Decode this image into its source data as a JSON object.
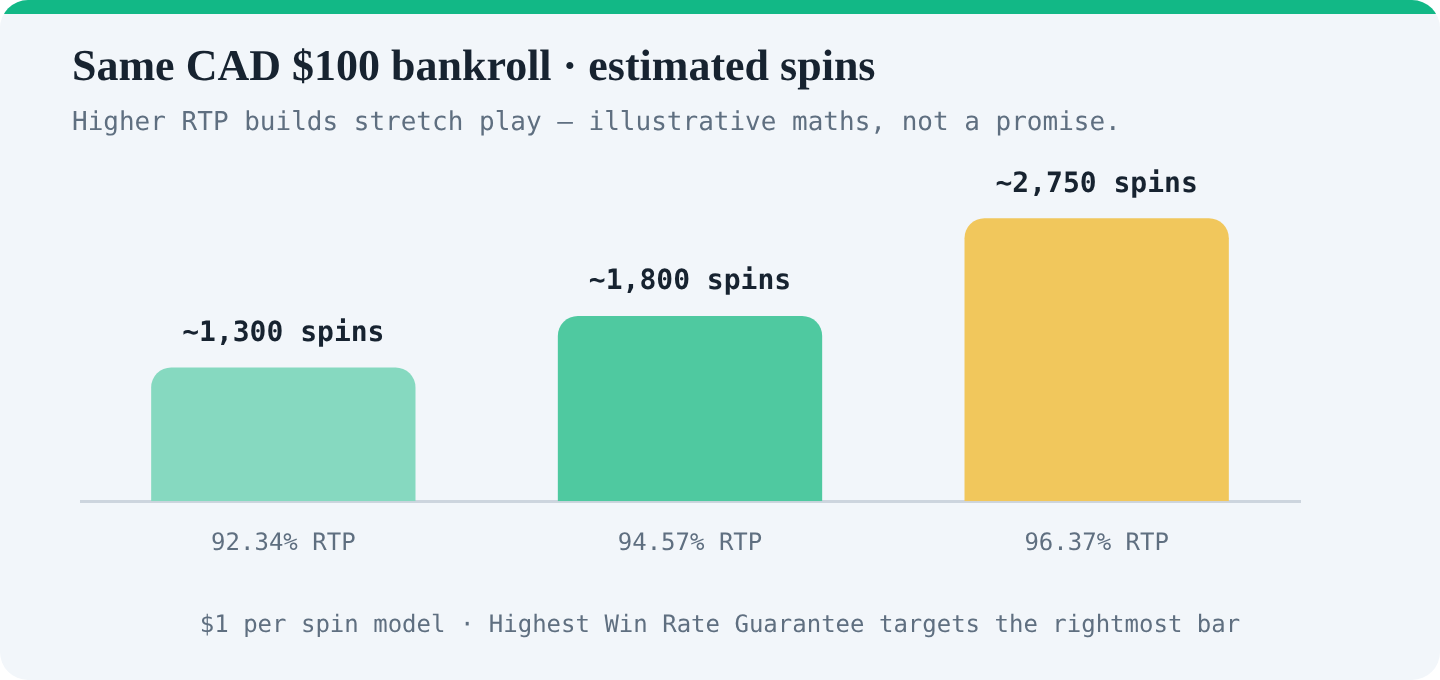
{
  "chart_data": {
    "type": "bar",
    "title": "Same CAD $100 bankroll · estimated spins",
    "subtitle": "Higher RTP builds stretch play — illustrative maths, not a promise.",
    "categories": [
      "92.34% RTP",
      "94.57% RTP",
      "96.37% RTP"
    ],
    "values": [
      1300,
      1800,
      2750
    ],
    "colors": [
      "#86d9c0",
      "#4fc9a0",
      "#f1c75c"
    ],
    "value_labels": [
      "~1,300 spins",
      "~1,800 spins",
      "~2,750 spins"
    ],
    "tick_labels": "x",
    "grid": false,
    "legend": false,
    "annotations": [
      "$1 per spin model · Highest Win Rate Guarantee targets the rightmost bar"
    ]
  }
}
